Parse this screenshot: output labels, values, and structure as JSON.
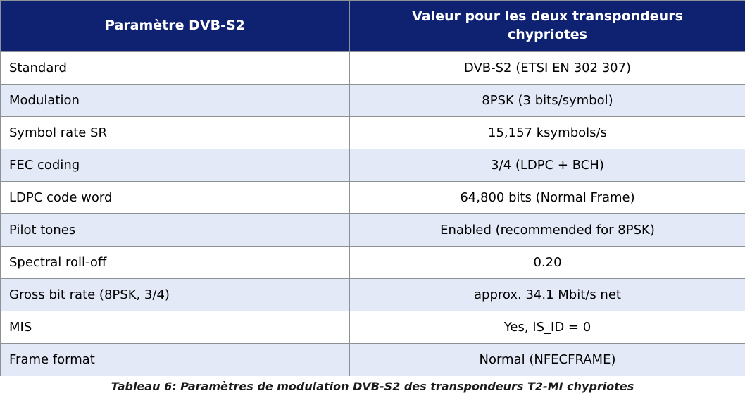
{
  "table": {
    "header": {
      "col1": "Paramètre DVB-S2",
      "col2": "Valeur pour les deux transpondeurs chypriotes"
    },
    "rows": [
      {
        "param": "Standard",
        "value": "DVB-S2 (ETSI EN 302 307)"
      },
      {
        "param": "Modulation",
        "value": "8PSK (3 bits/symbol)"
      },
      {
        "param": "Symbol rate SR",
        "value": "15,157 ksymbols/s"
      },
      {
        "param": "FEC coding",
        "value": "3/4 (LDPC + BCH)"
      },
      {
        "param": "LDPC code word",
        "value": "64,800 bits (Normal Frame)"
      },
      {
        "param": "Pilot tones",
        "value": "Enabled (recommended for 8PSK)"
      },
      {
        "param": "Spectral roll-off",
        "value": "0.20"
      },
      {
        "param": "Gross bit rate (8PSK, 3/4)",
        "value": "approx. 34.1 Mbit/s net"
      },
      {
        "param": "MIS",
        "value": "Yes, IS_ID = 0"
      },
      {
        "param": "Frame format",
        "value": "Normal (NFECFRAME)"
      }
    ]
  },
  "caption": "Tableau 6: Paramètres de modulation DVB-S2 des transpondeurs T2-MI chypriotes",
  "colors": {
    "header_bg": "#0f2272",
    "header_text": "#ffffff",
    "row_bg": "#ffffff",
    "row_alt_bg": "#e3e9f7",
    "border": "#8c9196",
    "caption_text": "#1a1a1a"
  }
}
